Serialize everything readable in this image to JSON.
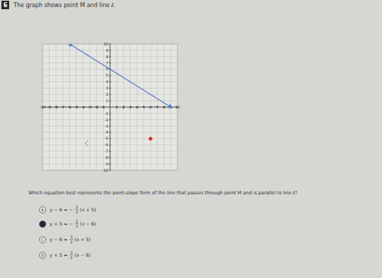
{
  "question": {
    "number": "6",
    "intro": "The graph shows point M and line ℓ.",
    "prompt": "Which equation best represents the point-slope form of the line that passes through point M and is parallel to line ℓ?",
    "choices": [
      {
        "letter": "A",
        "lhs": "y − 6 = −",
        "num": "2",
        "den": "3",
        "rhs": "(x + 5)"
      },
      {
        "selected": true,
        "lhs": "y + 5 = −",
        "num": "2",
        "den": "3",
        "rhs": "(x − 6)"
      },
      {
        "letter": "C",
        "lhs": "y − 6 =",
        "num": "3",
        "den": "2",
        "rhs": "(x + 5)"
      },
      {
        "letter": "D",
        "lhs": "y + 5 =",
        "num": "3",
        "den": "2",
        "rhs": "(x − 6)"
      }
    ]
  },
  "chart_data": {
    "type": "line",
    "xlim": [
      -10,
      10
    ],
    "ylim": [
      -10,
      10
    ],
    "xticks": [
      -10,
      -9,
      -8,
      -7,
      -6,
      -5,
      -4,
      -3,
      -2,
      -1,
      1,
      2,
      3,
      4,
      5,
      6,
      7,
      8,
      9,
      10
    ],
    "yticks": [
      -10,
      -9,
      -8,
      -7,
      -6,
      -5,
      -4,
      -3,
      -2,
      -1,
      1,
      2,
      3,
      4,
      5,
      6,
      7,
      8,
      9,
      10
    ],
    "grid": true,
    "series": [
      {
        "type": "line",
        "x": [
          -6,
          9
        ],
        "values": [
          10,
          0
        ],
        "color": "#5a7ec6"
      },
      {
        "type": "scatter",
        "x": [
          6
        ],
        "values": [
          -5
        ],
        "color": "#d9342b"
      }
    ]
  }
}
